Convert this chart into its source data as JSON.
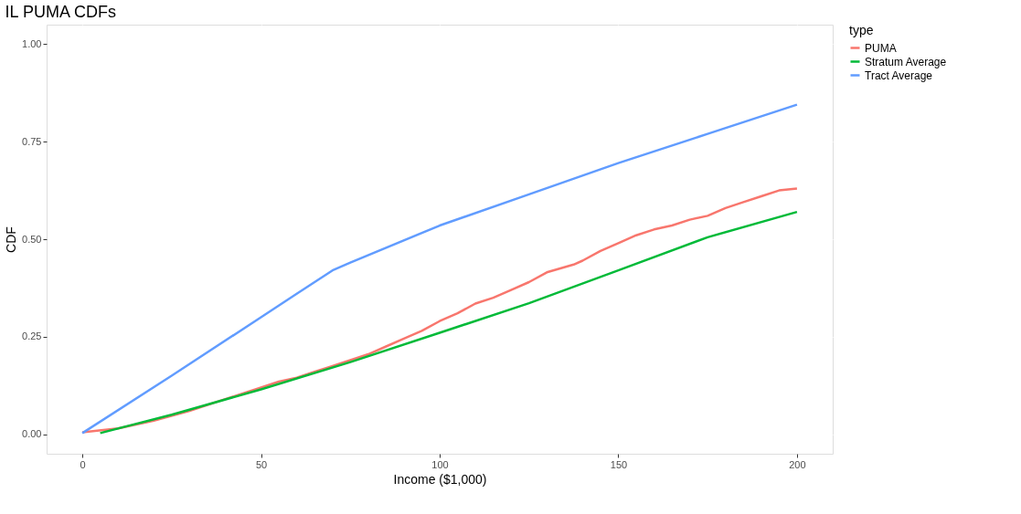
{
  "chart_data": {
    "type": "line",
    "title": "IL PUMA CDFs",
    "xlabel": "Income ($1,000)",
    "ylabel": "CDF",
    "legend_title": "type",
    "legend": "right",
    "grid": true,
    "line_style": "solid",
    "marker": "none",
    "xlim": [
      -10,
      210
    ],
    "xticks": [
      0,
      50,
      100,
      150,
      200
    ],
    "ylim": [
      -0.05,
      1.05
    ],
    "yticks": [
      {
        "value": 0,
        "label": "0.00"
      },
      {
        "value": 0.25,
        "label": "0.25"
      },
      {
        "value": 0.5,
        "label": "0.50"
      },
      {
        "value": 0.75,
        "label": "0.75"
      },
      {
        "value": 1,
        "label": "1.00"
      }
    ],
    "series": [
      {
        "name": "PUMA",
        "color": "#f8766d",
        "x": [
          0,
          10,
          20,
          30,
          40,
          50,
          55,
          60,
          65,
          70,
          75,
          80,
          85,
          90,
          95,
          100,
          105,
          110,
          115,
          120,
          125,
          130,
          137.5,
          140,
          145,
          150,
          155,
          160,
          165,
          170,
          175,
          180,
          185,
          190,
          195,
          200
        ],
        "values": [
          0.005,
          0.015,
          0.035,
          0.06,
          0.09,
          0.12,
          0.135,
          0.145,
          0.16,
          0.175,
          0.19,
          0.205,
          0.225,
          0.245,
          0.265,
          0.29,
          0.31,
          0.335,
          0.35,
          0.37,
          0.39,
          0.415,
          0.435,
          0.445,
          0.47,
          0.49,
          0.51,
          0.525,
          0.535,
          0.55,
          0.56,
          0.58,
          0.595,
          0.61,
          0.625,
          0.63
        ]
      },
      {
        "name": "Stratum Average",
        "color": "#00ba38",
        "x": [
          5,
          25,
          50,
          75,
          100,
          125,
          150,
          175,
          200
        ],
        "values": [
          0.003,
          0.05,
          0.115,
          0.185,
          0.26,
          0.336,
          0.42,
          0.505,
          0.57
        ]
      },
      {
        "name": "Tract Average",
        "color": "#619cff",
        "x": [
          0,
          25,
          50,
          60,
          70,
          75,
          100,
          125,
          150,
          175,
          200
        ],
        "values": [
          0.003,
          0.15,
          0.3,
          0.36,
          0.42,
          0.44,
          0.535,
          0.615,
          0.695,
          0.77,
          0.845
        ]
      }
    ]
  }
}
